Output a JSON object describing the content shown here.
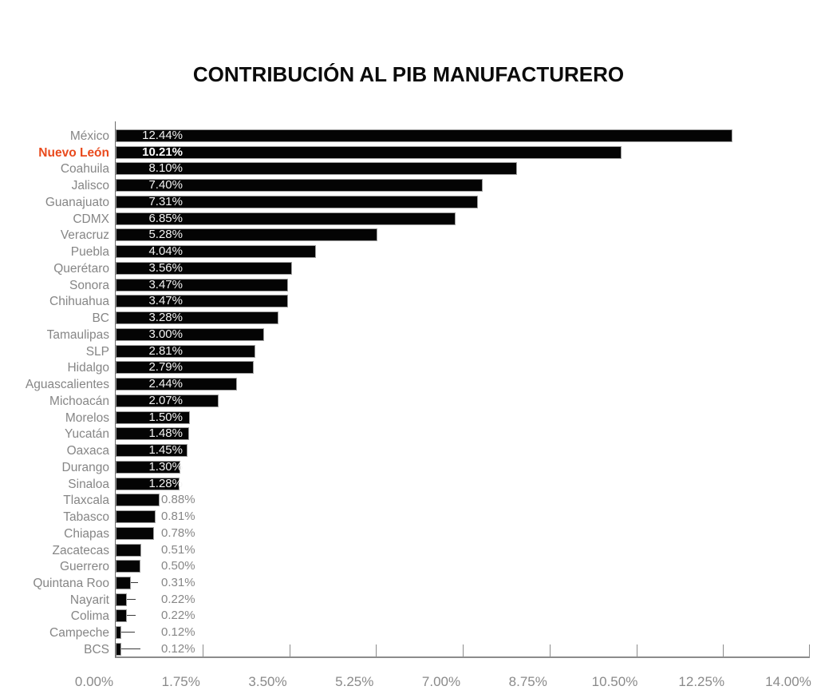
{
  "chart_data": {
    "type": "bar",
    "orientation": "horizontal",
    "title": "CONTRIBUCIÓN AL PIB MANUFACTURERO",
    "xlabel": "",
    "ylabel": "",
    "xlim": [
      0,
      14
    ],
    "x_tick_labels": [
      "0.00%",
      "1.75%",
      "3.50%",
      "5.25%",
      "7.00%",
      "8.75%",
      "10.50%",
      "12.25%",
      "14.00%"
    ],
    "grid": false,
    "legend": null,
    "highlight_index": 1,
    "highlighted_category": "Nuevo León",
    "inside_label_min_value": 1.0,
    "categories": [
      "México",
      "Nuevo León",
      "Coahuila",
      "Jalisco",
      "Guanajuato",
      "CDMX",
      "Veracruz",
      "Puebla",
      "Querétaro",
      "Sonora",
      "Chihuahua",
      "BC",
      "Tamaulipas",
      "SLP",
      "Hidalgo",
      "Aguascalientes",
      "Michoacán",
      "Morelos",
      "Yucatán",
      "Oaxaca",
      "Durango",
      "Sinaloa",
      "Tlaxcala",
      "Tabasco",
      "Chiapas",
      "Zacatecas",
      "Guerrero",
      "Quintana Roo",
      "Nayarit",
      "Colima",
      "Campeche",
      "BCS"
    ],
    "values": [
      12.44,
      10.21,
      8.1,
      7.4,
      7.31,
      6.85,
      5.28,
      4.04,
      3.56,
      3.47,
      3.47,
      3.28,
      3.0,
      2.81,
      2.79,
      2.44,
      2.07,
      1.5,
      1.48,
      1.45,
      1.3,
      1.28,
      0.88,
      0.81,
      0.78,
      0.51,
      0.5,
      0.31,
      0.22,
      0.22,
      0.12,
      0.12
    ],
    "value_labels": [
      "12.44%",
      "10.21%",
      "8.10%",
      "7.40%",
      "7.31%",
      "6.85%",
      "5.28%",
      "4.04%",
      "3.56%",
      "3.47%",
      "3.47%",
      "3.28%",
      "3.00%",
      "2.81%",
      "2.79%",
      "2.44%",
      "2.07%",
      "1.50%",
      "1.48%",
      "1.45%",
      "1.30%",
      "1.28%",
      "0.88%",
      "0.81%",
      "0.78%",
      "0.51%",
      "0.50%",
      "0.31%",
      "0.22%",
      "0.22%",
      "0.12%",
      "0.12%"
    ],
    "error_whiskers": [
      {
        "index": 27,
        "category": "Quintana Roo",
        "to": 0.45
      },
      {
        "index": 28,
        "category": "Nayarit",
        "to": 0.4
      },
      {
        "index": 29,
        "category": "Colima",
        "to": 0.4
      },
      {
        "index": 30,
        "category": "Campeche",
        "to": 0.38
      },
      {
        "index": 31,
        "category": "BCS",
        "to": 0.5
      }
    ],
    "colors": {
      "bar": "#040404",
      "bar_outline": "#9e9e9e",
      "category_label": "#868686",
      "highlight_label": "#E94A1D",
      "value_inside": "#f4f4f4",
      "value_outside": "#878787",
      "axis": "#8c8c8c",
      "title": "#0b0b0b",
      "background": "#ffffff"
    }
  }
}
